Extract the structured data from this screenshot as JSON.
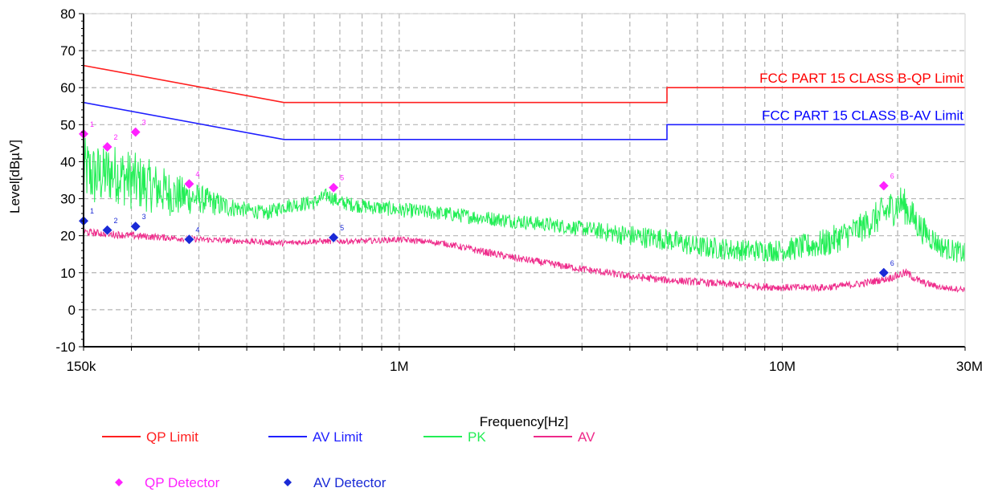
{
  "chart_data": {
    "type": "line",
    "title": "",
    "xlabel": "Frequency[Hz]",
    "ylabel": "Level[dBµV]",
    "x_scale": "log",
    "xlim": [
      150000,
      30000000
    ],
    "ylim": [
      -10,
      80
    ],
    "x_ticks": [
      {
        "value": 150000,
        "label": "150k"
      },
      {
        "value": 1000000,
        "label": "1M"
      },
      {
        "value": 10000000,
        "label": "10M"
      },
      {
        "value": 30000000,
        "label": "30M"
      }
    ],
    "y_ticks": [
      -10,
      0,
      10,
      20,
      30,
      40,
      50,
      60,
      70,
      80
    ],
    "grid": true,
    "limit_labels": [
      {
        "text": "FCC PART 15 CLASS B-QP Limit",
        "color": "#ff0000"
      },
      {
        "text": "FCC PART 15 CLASS B-AV Limit",
        "color": "#0000ff"
      }
    ],
    "series": [
      {
        "name": "QP Limit",
        "color": "#ff2020",
        "kind": "line",
        "x": [
          150000,
          500000,
          500000,
          5000000,
          5000000,
          30000000
        ],
        "y": [
          66,
          56,
          56,
          56,
          60,
          60
        ]
      },
      {
        "name": "AV Limit",
        "color": "#2020ff",
        "kind": "line",
        "x": [
          150000,
          500000,
          500000,
          5000000,
          5000000,
          30000000
        ],
        "y": [
          56,
          46,
          46,
          46,
          50,
          50
        ]
      },
      {
        "name": "PK",
        "color": "#22ee55",
        "kind": "noisy-line",
        "x": [
          150000,
          160000,
          180000,
          200000,
          230000,
          260000,
          300000,
          350000,
          400000,
          450000,
          500000,
          600000,
          650000,
          700000,
          800000,
          1000000,
          1300000,
          1600000,
          2000000,
          3000000,
          4000000,
          5000000,
          6000000,
          8000000,
          10000000,
          13000000,
          16000000,
          19000000,
          20500000,
          23000000,
          26000000,
          30000000
        ],
        "y": [
          38,
          36,
          37,
          35,
          33,
          31,
          30,
          28,
          27,
          26,
          28,
          29,
          31,
          29,
          28,
          27,
          26,
          25,
          24,
          22,
          20,
          19,
          17,
          16,
          16,
          18,
          22,
          27,
          29,
          22,
          17,
          15
        ],
        "swing": [
          9,
          9,
          8,
          8,
          7,
          6,
          4,
          3,
          2,
          2,
          2,
          2,
          2,
          2,
          2,
          2,
          2,
          2,
          2,
          2,
          3,
          3,
          3,
          3,
          3,
          4,
          4,
          5,
          5,
          4,
          3,
          3
        ]
      },
      {
        "name": "AV",
        "color": "#ee2a8a",
        "kind": "noisy-line",
        "x": [
          150000,
          200000,
          300000,
          400000,
          500000,
          600000,
          800000,
          1000000,
          1300000,
          1600000,
          2000000,
          3000000,
          4000000,
          5000000,
          6000000,
          8000000,
          10000000,
          13000000,
          16000000,
          19000000,
          21000000,
          23000000,
          26000000,
          30000000
        ],
        "y": [
          21,
          20,
          19,
          18.5,
          18,
          18.5,
          18.5,
          19,
          18,
          16,
          14,
          11,
          9,
          8,
          7.5,
          6.5,
          6,
          6,
          7,
          8.5,
          10,
          7.5,
          6,
          5.5
        ],
        "swing": [
          1,
          1,
          0.8,
          0.8,
          0.8,
          0.8,
          0.8,
          0.8,
          0.8,
          1,
          1,
          1,
          1,
          1,
          1,
          1,
          1,
          1,
          1,
          1,
          1.2,
          1,
          0.8,
          0.8
        ]
      },
      {
        "name": "QP Detector",
        "color": "#ff22ff",
        "kind": "markers",
        "x": [
          150000,
          173000,
          205000,
          283000,
          674000,
          18400000
        ],
        "y": [
          47.5,
          44,
          48,
          34,
          33,
          33.5
        ],
        "labels": [
          "1",
          "2",
          "3",
          "4",
          "5",
          "6"
        ]
      },
      {
        "name": "AV Detector",
        "color": "#1a2ad6",
        "kind": "markers",
        "x": [
          150000,
          173000,
          205000,
          283000,
          674000,
          18400000
        ],
        "y": [
          24,
          21.5,
          22.5,
          19,
          19.5,
          10
        ],
        "labels": [
          "1",
          "2",
          "3",
          "4",
          "5",
          "6"
        ]
      }
    ],
    "legend": {
      "placement": "bottom-left",
      "rows": [
        [
          {
            "name": "QP Limit",
            "symbol": "line",
            "color": "#ff2020"
          },
          {
            "name": "AV Limit",
            "symbol": "line",
            "color": "#2020ff"
          },
          {
            "name": "PK",
            "symbol": "line",
            "color": "#22ee55"
          },
          {
            "name": "AV",
            "symbol": "line",
            "color": "#ee2a8a"
          }
        ],
        [
          {
            "name": "QP Detector",
            "symbol": "diamond",
            "color": "#ff22ff"
          },
          {
            "name": "AV Detector",
            "symbol": "diamond",
            "color": "#1a2ad6"
          }
        ]
      ]
    }
  }
}
